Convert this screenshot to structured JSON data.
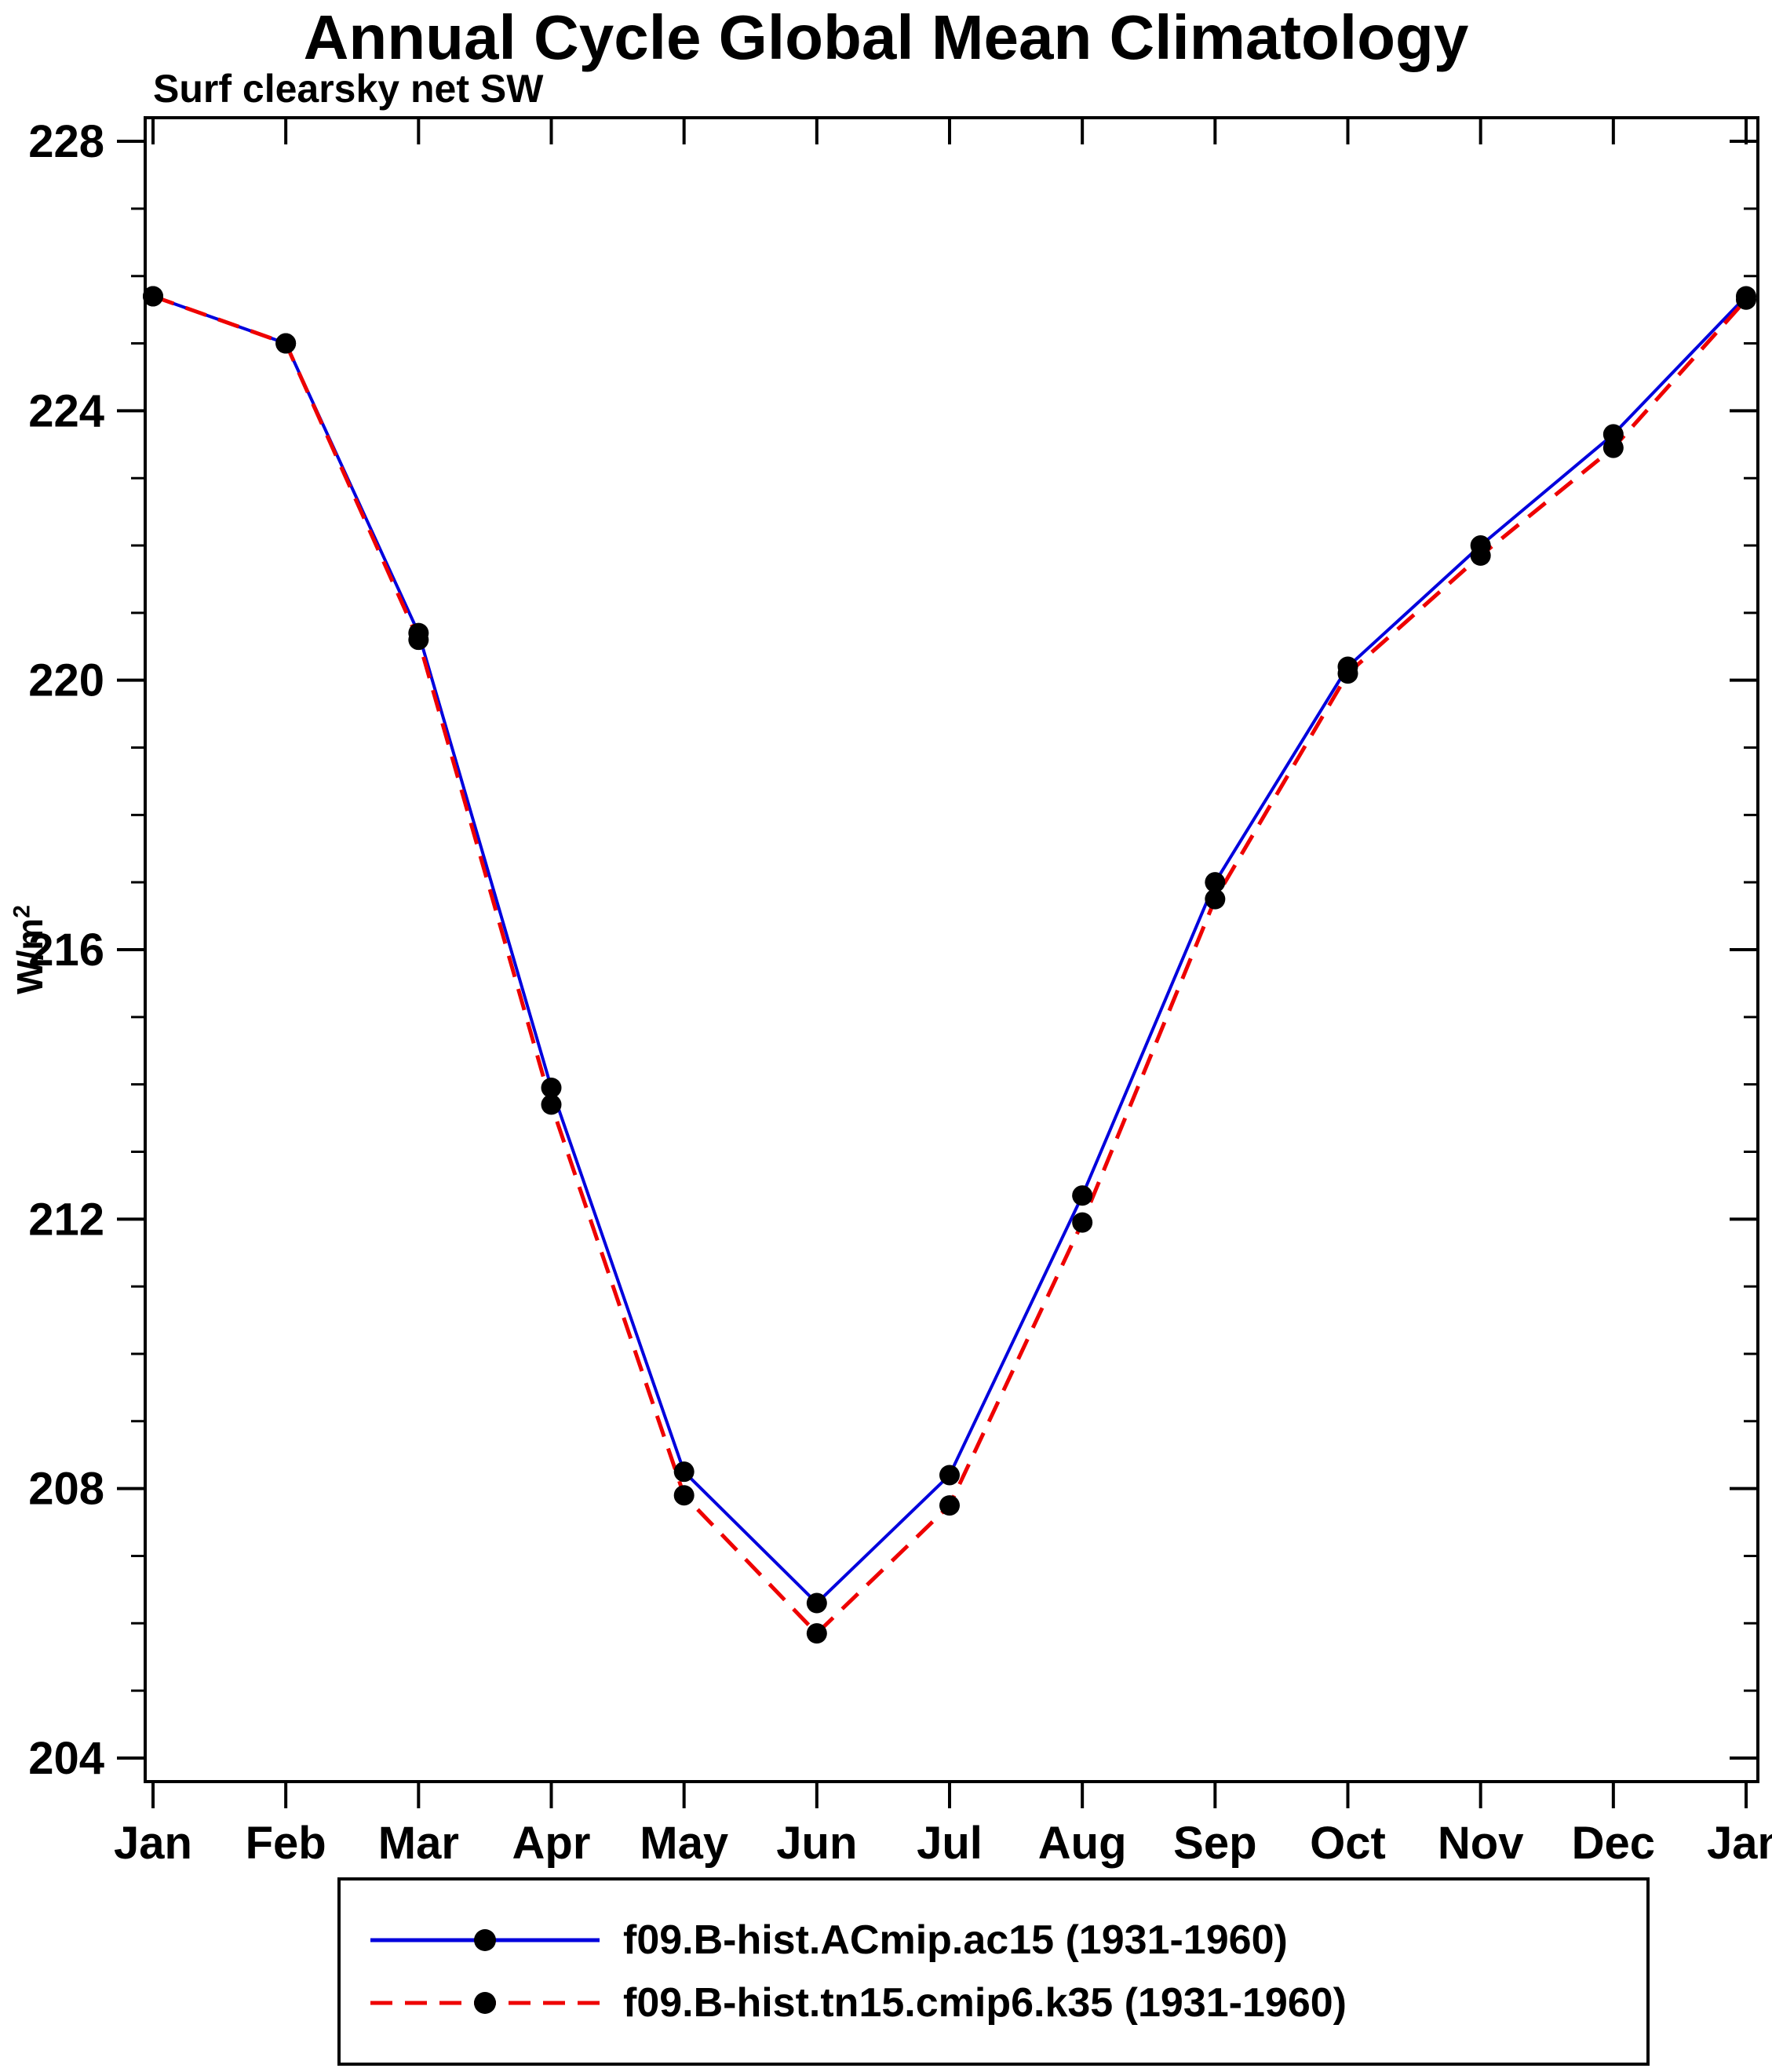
{
  "title": "Annual Cycle Global Mean Climatology",
  "subtitle": "Surf clearsky net SW",
  "ylabel": "W/m",
  "ylabel_exponent": "2",
  "chart_data": {
    "type": "line",
    "categories": [
      "Jan",
      "Feb",
      "Mar",
      "Apr",
      "May",
      "Jun",
      "Jul",
      "Aug",
      "Sep",
      "Oct",
      "Nov",
      "Dec",
      "Jan"
    ],
    "ylim": [
      204,
      228
    ],
    "yticks": [
      204,
      208,
      212,
      216,
      220,
      224,
      228
    ],
    "minor_tick_interval": 1,
    "grid": false,
    "legend_position": "bottom",
    "axis_color": "#000000",
    "marker_color": "#000000",
    "series": [
      {
        "name": "f09.B-hist.ACmip.ac15 (1931-1960)",
        "color": "#0000dd",
        "line_style": "solid",
        "marker": "circle",
        "values": [
          225.7,
          225.0,
          220.7,
          213.95,
          208.25,
          206.3,
          208.2,
          212.35,
          217.0,
          220.2,
          222.0,
          223.65,
          225.7
        ]
      },
      {
        "name": "f09.B-hist.tn15.cmip6.k35 (1931-1960)",
        "color": "#ee0000",
        "line_style": "dashed",
        "marker": "circle",
        "values": [
          225.7,
          225.0,
          220.6,
          213.7,
          207.9,
          205.85,
          207.75,
          211.95,
          216.75,
          220.1,
          221.85,
          223.45,
          225.65
        ]
      }
    ]
  }
}
